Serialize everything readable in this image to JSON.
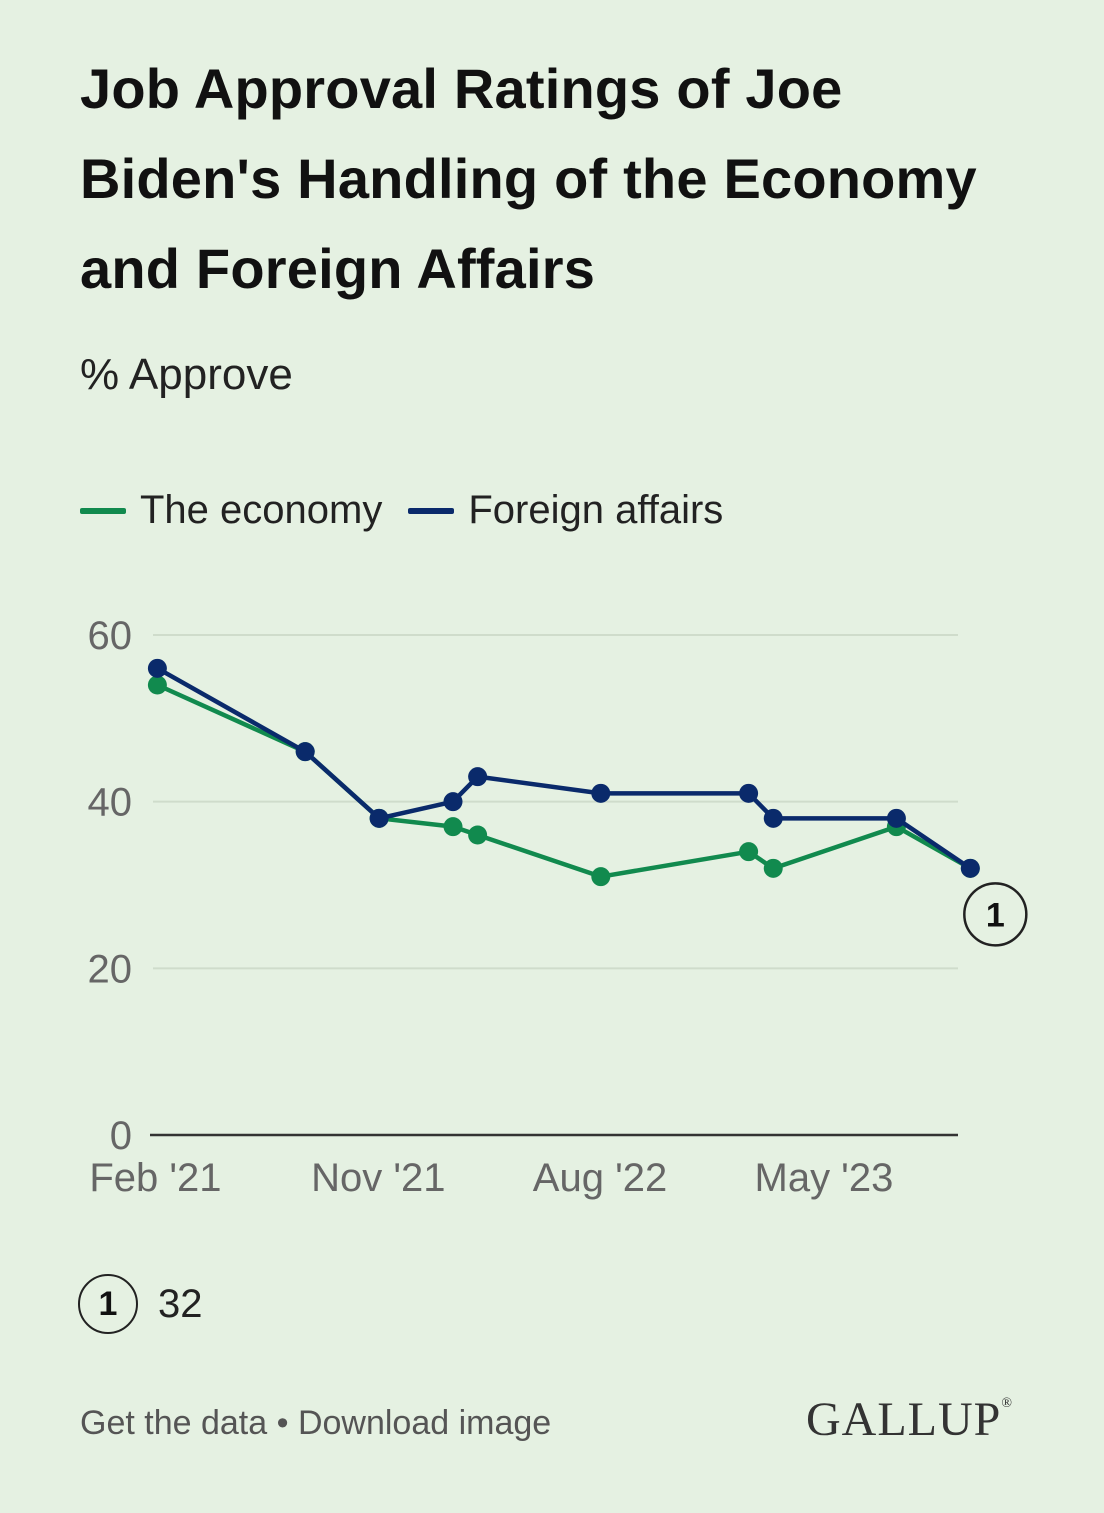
{
  "title": "Job Approval Ratings of Joe Biden's Handling of the Economy and Foreign Affairs",
  "subtitle": "% Approve",
  "colors": {
    "economy": "#118a4e",
    "foreign": "#0a2a6b",
    "grid": "#cfdccb",
    "axis": "#333333"
  },
  "note": {
    "marker": "1",
    "text": "32"
  },
  "footer": {
    "get_data": "Get the data",
    "separator": "•",
    "download": "Download image"
  },
  "logo": {
    "text": "GALLUP",
    "mark": "®"
  },
  "chart_data": {
    "type": "line",
    "title": "Job Approval Ratings of Joe Biden's Handling of the Economy and Foreign Affairs",
    "ylabel": "% Approve",
    "ylim": [
      0,
      60
    ],
    "yticks": [
      0,
      20,
      40,
      60
    ],
    "xlim": [
      -0.3,
      32.5
    ],
    "xticks": [
      {
        "label": "Feb '21",
        "x": 0
      },
      {
        "label": "Nov '21",
        "x": 9
      },
      {
        "label": "Aug '22",
        "x": 18
      },
      {
        "label": "May '23",
        "x": 27
      }
    ],
    "series": [
      {
        "name": "The economy",
        "color": "#118a4e",
        "points": [
          {
            "x": 0,
            "y": 54
          },
          {
            "x": 6,
            "y": 46
          },
          {
            "x": 9,
            "y": 38
          },
          {
            "x": 12,
            "y": 37
          },
          {
            "x": 13,
            "y": 36
          },
          {
            "x": 18,
            "y": 31
          },
          {
            "x": 24,
            "y": 34
          },
          {
            "x": 25,
            "y": 32
          },
          {
            "x": 30,
            "y": 37
          },
          {
            "x": 33,
            "y": 32
          }
        ]
      },
      {
        "name": "Foreign affairs",
        "color": "#0a2a6b",
        "points": [
          {
            "x": 0,
            "y": 56
          },
          {
            "x": 6,
            "y": 46
          },
          {
            "x": 9,
            "y": 38
          },
          {
            "x": 12,
            "y": 40
          },
          {
            "x": 13,
            "y": 43
          },
          {
            "x": 18,
            "y": 41
          },
          {
            "x": 24,
            "y": 41
          },
          {
            "x": 25,
            "y": 38
          },
          {
            "x": 30,
            "y": 38
          },
          {
            "x": 33,
            "y": 32
          }
        ]
      }
    ],
    "annotations": [
      {
        "label": "1",
        "series": "Foreign affairs",
        "x": 33,
        "y": 32
      }
    ]
  }
}
